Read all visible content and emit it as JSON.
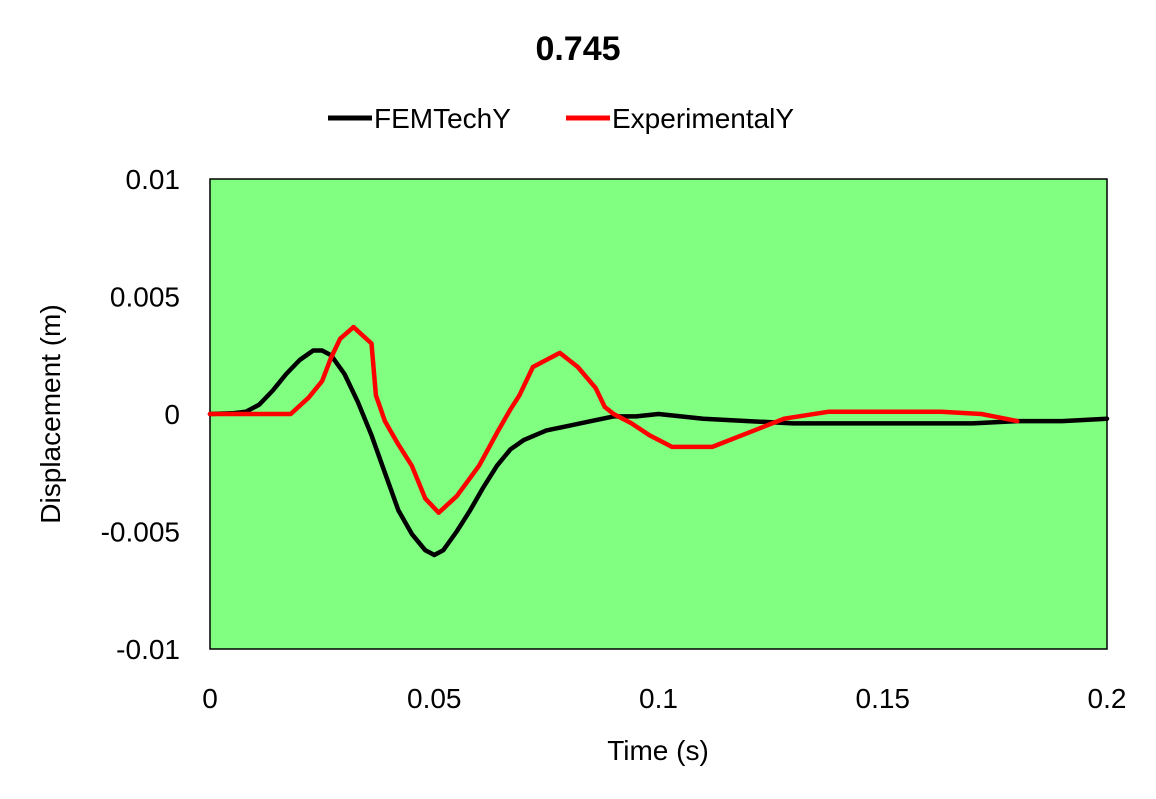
{
  "chart_data": {
    "type": "line",
    "title": "0.745",
    "xlabel": "Time (s)",
    "ylabel": "Displacement (m)",
    "xlim": [
      0,
      0.2
    ],
    "ylim": [
      -0.01,
      0.01
    ],
    "xticks": [
      0,
      0.05,
      0.1,
      0.15,
      0.2
    ],
    "xtick_labels": [
      "0",
      "0.05",
      "0.1",
      "0.15",
      "0.2"
    ],
    "yticks": [
      0.01,
      0.005,
      0,
      -0.005,
      -0.01
    ],
    "ytick_labels": [
      "0.01",
      "0.005",
      "0",
      "-0.005",
      "-0.01"
    ],
    "grid": false,
    "legend_position": "top-center",
    "plot_background": "#80ff80",
    "series": [
      {
        "name": "FEMTechY",
        "color": "#000000",
        "x": [
          0,
          0.005,
          0.008,
          0.011,
          0.014,
          0.017,
          0.02,
          0.023,
          0.025,
          0.027,
          0.03,
          0.033,
          0.036,
          0.039,
          0.042,
          0.045,
          0.048,
          0.05,
          0.052,
          0.055,
          0.058,
          0.061,
          0.064,
          0.067,
          0.07,
          0.075,
          0.08,
          0.085,
          0.09,
          0.095,
          0.1,
          0.105,
          0.11,
          0.12,
          0.13,
          0.14,
          0.15,
          0.16,
          0.17,
          0.18,
          0.19,
          0.2
        ],
        "y": [
          0,
          3e-05,
          0.0001,
          0.0004,
          0.001,
          0.0017,
          0.0023,
          0.0027,
          0.0027,
          0.0025,
          0.0017,
          0.0005,
          -0.0009,
          -0.0025,
          -0.0041,
          -0.0051,
          -0.0058,
          -0.006,
          -0.0058,
          -0.005,
          -0.0041,
          -0.0031,
          -0.0022,
          -0.0015,
          -0.0011,
          -0.0007,
          -0.0005,
          -0.0003,
          -0.0001,
          -0.0001,
          0,
          -0.0001,
          -0.0002,
          -0.0003,
          -0.0004,
          -0.0004,
          -0.0004,
          -0.0004,
          -0.0004,
          -0.0003,
          -0.0003,
          -0.0002
        ]
      },
      {
        "name": "ExperimentalY",
        "color": "#ff0000",
        "x": [
          0,
          0.018,
          0.022,
          0.025,
          0.027,
          0.029,
          0.032,
          0.036,
          0.037,
          0.039,
          0.042,
          0.045,
          0.048,
          0.051,
          0.055,
          0.06,
          0.064,
          0.067,
          0.069,
          0.072,
          0.078,
          0.082,
          0.086,
          0.088,
          0.09,
          0.094,
          0.098,
          0.103,
          0.112,
          0.12,
          0.128,
          0.138,
          0.148,
          0.163,
          0.172,
          0.18
        ],
        "y": [
          0,
          0,
          0.0007,
          0.0014,
          0.0024,
          0.0032,
          0.0037,
          0.003,
          0.0008,
          -0.0003,
          -0.0013,
          -0.0022,
          -0.0036,
          -0.0042,
          -0.0035,
          -0.0022,
          -0.0008,
          0.0002,
          0.0008,
          0.002,
          0.0026,
          0.002,
          0.0011,
          0.0003,
          0,
          -0.0004,
          -0.0009,
          -0.0014,
          -0.0014,
          -0.0008,
          -0.0002,
          0.0001,
          0.0001,
          0.0001,
          0,
          -0.0003
        ]
      }
    ]
  }
}
